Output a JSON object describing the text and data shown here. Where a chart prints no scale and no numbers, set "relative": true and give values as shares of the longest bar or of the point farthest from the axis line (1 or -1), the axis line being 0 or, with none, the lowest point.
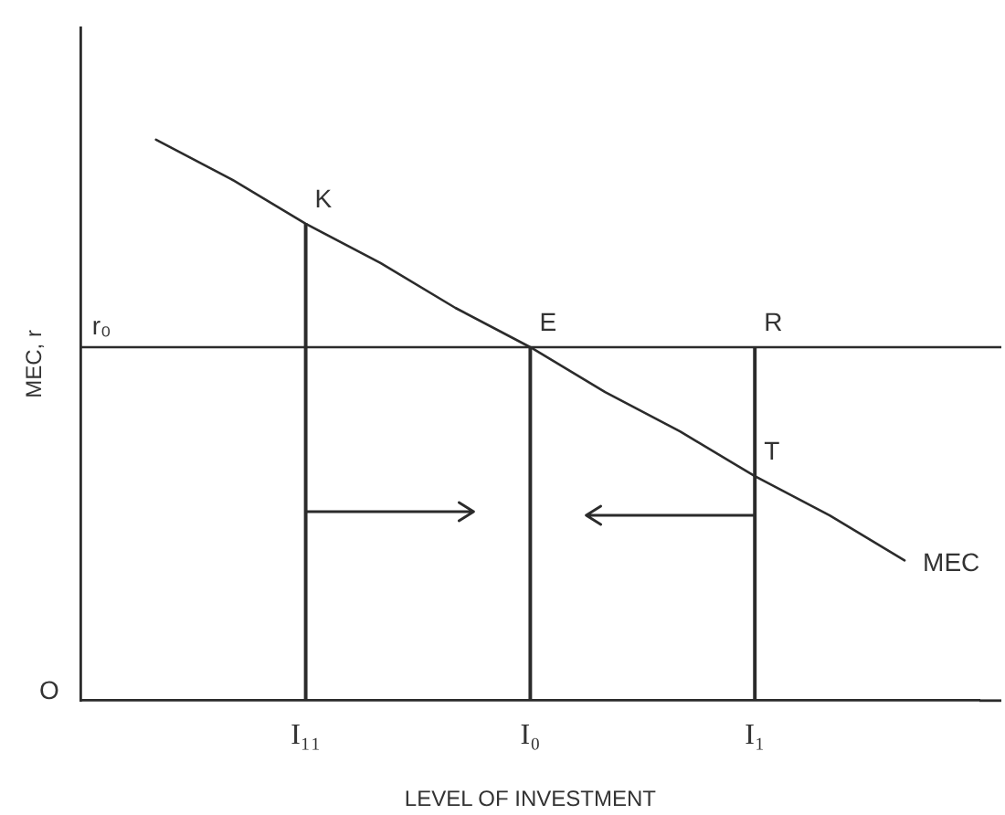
{
  "chart_data": {
    "type": "line",
    "xlabel": "LEVEL OF INVESTMENT",
    "ylabel": "MEC, r",
    "relative": true,
    "categories": [
      null,
      null,
      null,
      "I₁₁",
      null,
      null,
      "I₀",
      null,
      null,
      "I₁",
      null,
      null,
      null
    ],
    "series": [
      {
        "name": "MEC",
        "color": "#2b2b2b",
        "values": [
          null,
          1,
          0.93,
          0.85,
          0.78,
          0.7,
          0.63,
          0.55,
          0.48,
          0.4,
          0.33,
          0.25,
          null
        ]
      },
      {
        "type": "bar",
        "color": "#2b2b2b",
        "values": [
          null,
          null,
          null,
          0.85,
          null,
          null,
          0.63,
          null,
          null,
          0.63,
          null,
          null,
          null
        ]
      }
    ],
    "ref_lines": [
      {
        "axis": "y",
        "value": 0.63,
        "label": "r₀"
      }
    ],
    "annotations": [
      {
        "text": "K",
        "x": "I₁₁",
        "y": 0.85
      },
      {
        "text": "E",
        "x": "I₀",
        "y": 0.63
      },
      {
        "text": "R",
        "x": "I₁",
        "y": 0.63
      },
      {
        "text": "T",
        "x": "I₁",
        "y": 0.4
      },
      "O"
    ],
    "grid": false,
    "legend": false,
    "marker": "none",
    "line_style": "solid"
  }
}
